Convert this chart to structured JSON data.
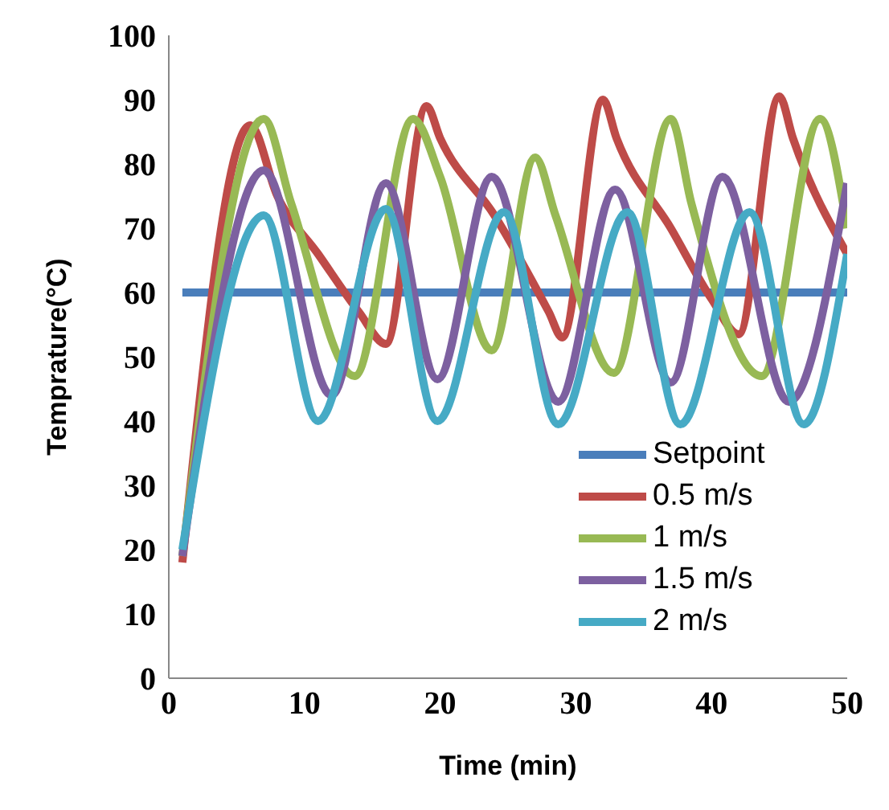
{
  "chart_data": {
    "type": "line",
    "xlabel": "Time (min)",
    "ylabel": "Temprature(°C)",
    "xlim": [
      0,
      50
    ],
    "ylim": [
      0,
      100
    ],
    "xticks": [
      0,
      10,
      20,
      30,
      40,
      50
    ],
    "yticks": [
      0,
      10,
      20,
      30,
      40,
      50,
      60,
      70,
      80,
      90,
      100
    ],
    "grid": false,
    "legend": "bottom right",
    "marker": "none",
    "line_style": "solid",
    "series": [
      {
        "name": "Setpoint",
        "color": "#4a7ebb",
        "x": [
          1,
          50
        ],
        "values": [
          60,
          60
        ]
      },
      {
        "name": "0.5 m/s",
        "color": "#be4b48",
        "x": [
          1,
          6,
          8,
          11,
          14,
          16,
          19,
          20,
          24,
          28,
          29,
          32,
          33,
          37,
          40,
          42,
          45,
          46,
          50
        ],
        "values": [
          18,
          86,
          75,
          66,
          57,
          52,
          89,
          84,
          72,
          57,
          53,
          90,
          84,
          70,
          59,
          53.5,
          90.5,
          84,
          66
        ]
      },
      {
        "name": "1 m/s",
        "color": "#98b954",
        "x": [
          1,
          7,
          9,
          13.7,
          18,
          20,
          23.8,
          27,
          28.5,
          32.8,
          37,
          38.5,
          43.7,
          48,
          50
        ],
        "values": [
          19,
          87,
          74,
          47,
          87,
          78,
          51,
          81,
          72,
          47.5,
          87,
          74,
          47,
          87,
          70
        ]
      },
      {
        "name": "1.5 m/s",
        "color": "#7d60a0",
        "x": [
          1,
          7,
          12,
          16,
          19.8,
          23.8,
          28.7,
          32.9,
          37,
          40.8,
          45.7,
          50
        ],
        "values": [
          19,
          79,
          44,
          77,
          46.5,
          78,
          43,
          76,
          46,
          78,
          43,
          77
        ]
      },
      {
        "name": "2 m/s",
        "color": "#46aac5",
        "x": [
          1,
          7,
          11,
          16,
          19.8,
          24.7,
          28.7,
          33.8,
          37.7,
          42.8,
          46.8,
          50
        ],
        "values": [
          20,
          72,
          40,
          73,
          40,
          72.5,
          39.5,
          72.5,
          39.5,
          72.5,
          39.5,
          66
        ]
      }
    ]
  }
}
